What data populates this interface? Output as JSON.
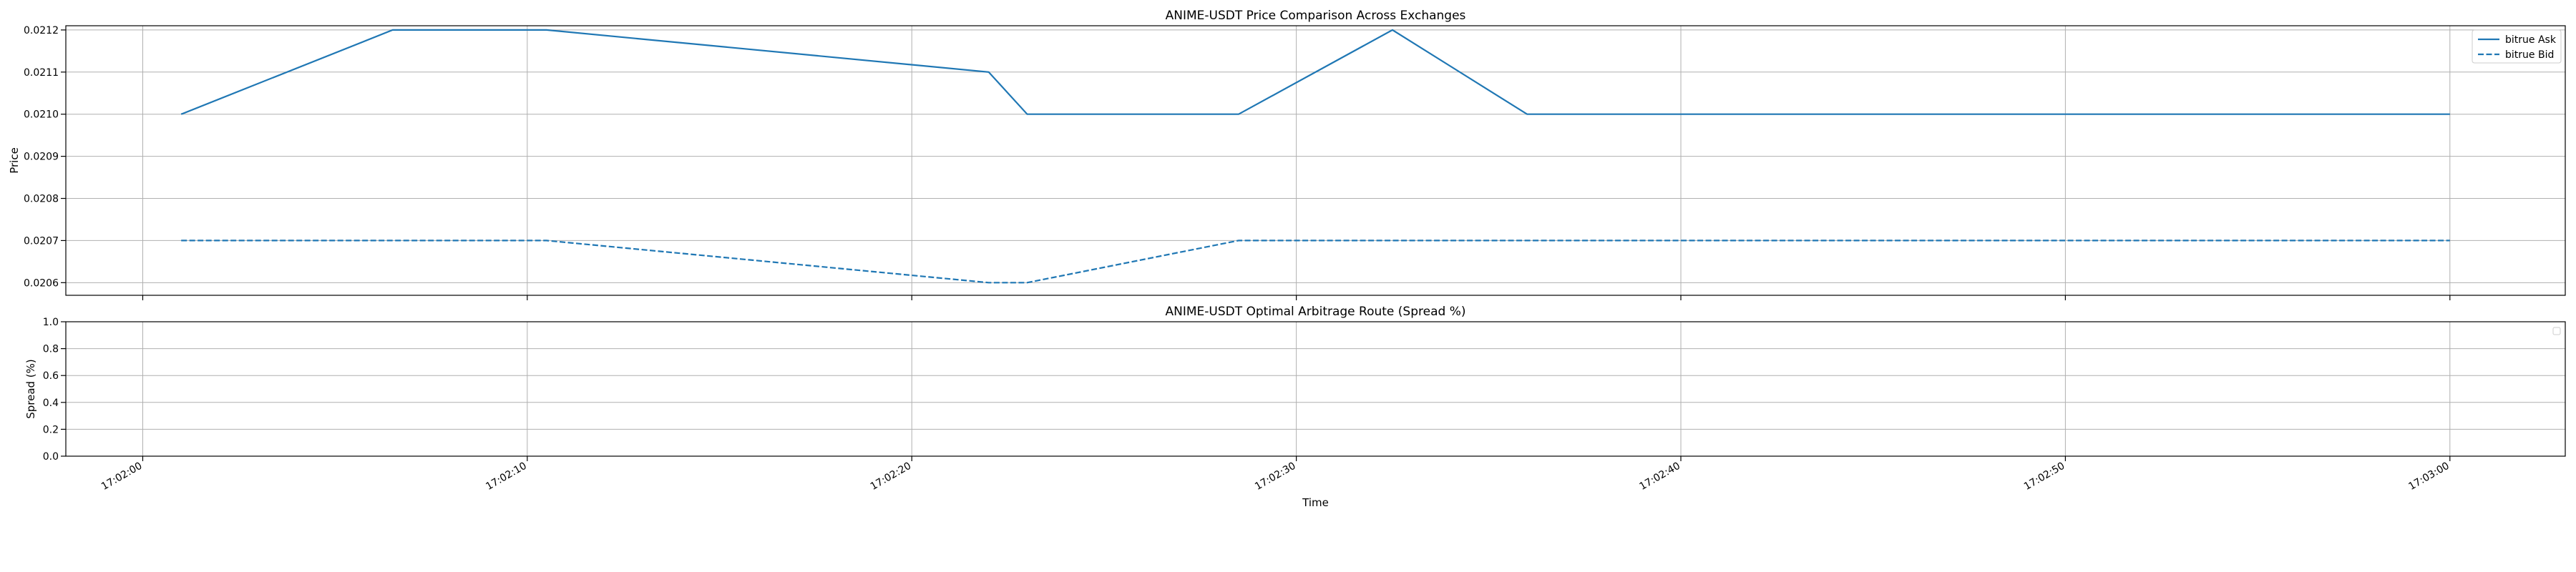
{
  "chart_data": [
    {
      "type": "line",
      "title": "ANIME-USDT Price Comparison Across Exchanges",
      "xlabel": "",
      "ylabel": "Price",
      "ylim": [
        0.02057,
        0.02121
      ],
      "yticks": [
        "0.0206",
        "0.0207",
        "0.0208",
        "0.0209",
        "0.0210",
        "0.0211",
        "0.0212"
      ],
      "ytick_values": [
        0.0206,
        0.0207,
        0.0208,
        0.0209,
        0.021,
        0.0211,
        0.0212
      ],
      "xlim": [
        "17:01:58",
        "17:03:03"
      ],
      "grid": true,
      "legend_position": "top-right",
      "series": [
        {
          "name": "bitrue Ask",
          "style": "solid",
          "color": "#1f77b4",
          "x": [
            "17:02:01",
            "17:02:06.5",
            "17:02:10.5",
            "17:02:22",
            "17:02:23",
            "17:02:28.5",
            "17:02:32.5",
            "17:02:36",
            "17:03:00"
          ],
          "y": [
            0.021,
            0.0212,
            0.0212,
            0.0211,
            0.021,
            0.021,
            0.0212,
            0.021,
            0.021
          ]
        },
        {
          "name": "bitrue Bid",
          "style": "dashed",
          "color": "#1f77b4",
          "x": [
            "17:02:01",
            "17:02:10.5",
            "17:02:22",
            "17:02:23",
            "17:02:28.5",
            "17:03:00"
          ],
          "y": [
            0.0207,
            0.0207,
            0.0206,
            0.0206,
            0.0207,
            0.0207
          ]
        }
      ]
    },
    {
      "type": "line",
      "title": "ANIME-USDT Optimal Arbitrage Route (Spread %)",
      "xlabel": "Time",
      "ylabel": "Spread (%)",
      "ylim": [
        0,
        1
      ],
      "yticks": [
        "0.0",
        "0.2",
        "0.4",
        "0.6",
        "0.8",
        "1.0"
      ],
      "ytick_values": [
        0,
        0.2,
        0.4,
        0.6,
        0.8,
        1.0
      ],
      "xlim": [
        "17:01:58",
        "17:03:03"
      ],
      "xticks": [
        "17:02:00",
        "17:02:10",
        "17:02:20",
        "17:02:30",
        "17:02:40",
        "17:02:50",
        "17:03:00"
      ],
      "grid": true,
      "legend_position": "top-right",
      "series": []
    }
  ]
}
